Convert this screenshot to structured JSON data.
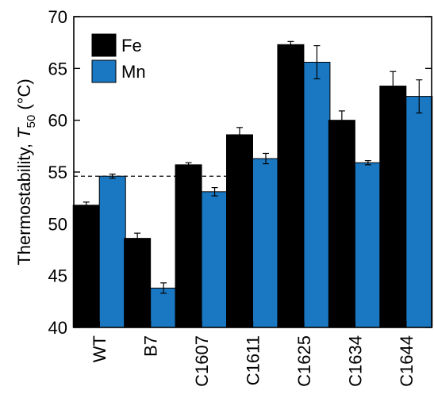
{
  "chart_data": {
    "type": "bar",
    "categories": [
      "WT",
      "B7",
      "C1607",
      "C1611",
      "C1625",
      "C1634",
      "C1644"
    ],
    "series": [
      {
        "name": "Fe",
        "color": "#000000",
        "values": [
          51.8,
          48.6,
          55.7,
          58.6,
          67.3,
          60.0,
          63.3
        ],
        "errors": [
          0.3,
          0.5,
          0.2,
          0.7,
          0.3,
          0.9,
          1.4
        ]
      },
      {
        "name": "Mn",
        "color": "#1a78c2",
        "values": [
          54.6,
          43.8,
          53.1,
          56.3,
          65.6,
          55.9,
          62.3
        ],
        "errors": [
          0.2,
          0.5,
          0.4,
          0.5,
          1.6,
          0.2,
          1.6
        ]
      }
    ],
    "ylabel_prefix": "Thermostability, ",
    "ylabel_var": "T",
    "ylabel_sub": "50",
    "ylabel_suffix": " (°C)",
    "ylim": [
      40,
      70
    ],
    "yticks": [
      40,
      45,
      50,
      55,
      60,
      65,
      70
    ],
    "reference_line": 54.6,
    "legend_position": "top-left",
    "grid": false
  }
}
